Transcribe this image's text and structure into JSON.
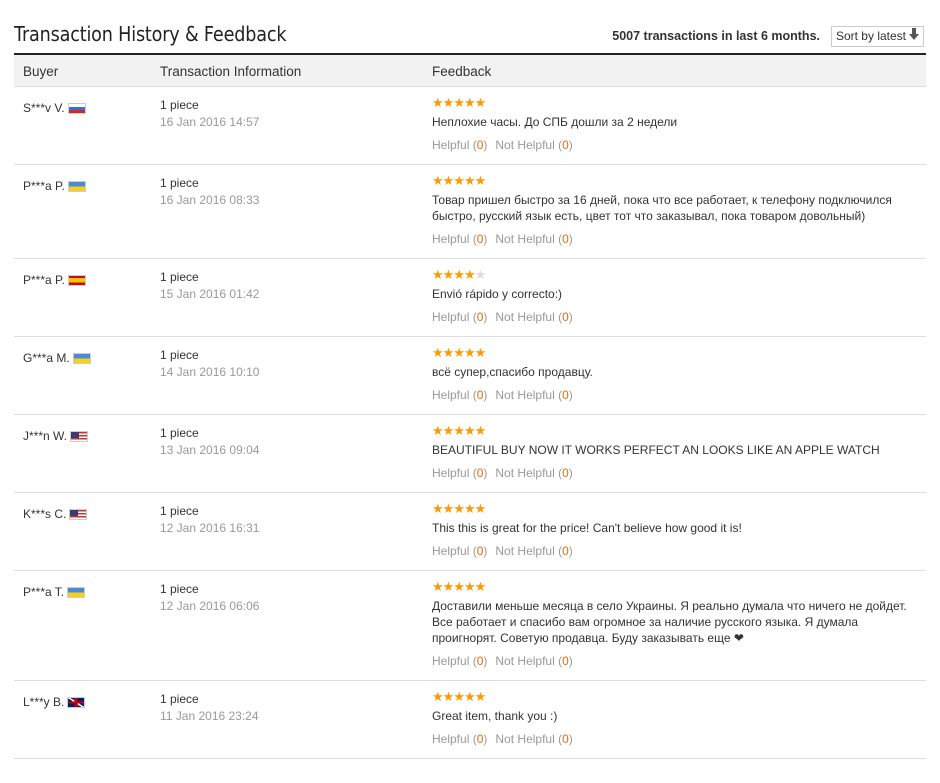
{
  "header": {
    "title": "Transaction History & Feedback",
    "count_text": "5007 transactions in last 6 months.",
    "sort_label": "Sort by latest"
  },
  "columns": [
    "Buyer",
    "Transaction Information",
    "Feedback"
  ],
  "helpful_label": "Helpful",
  "not_helpful_label": "Not Helpful",
  "colors": {
    "star": "#ff9900",
    "count": "#e66a00"
  },
  "rows": [
    {
      "buyer": "S***v V.",
      "flag": "ru",
      "qty": "1 piece",
      "date": "16 Jan 2016 14:57",
      "rating": 5,
      "text": "Неплохие часы. До СПБ дошли за 2 недели",
      "helpful": "0",
      "not_helpful": "0"
    },
    {
      "buyer": "P***a P.",
      "flag": "ua",
      "qty": "1 piece",
      "date": "16 Jan 2016 08:33",
      "rating": 5,
      "text": "Товар пришел быстро за 16 дней, пока что все работает, к телефону подключился быстро, русский язык есть, цвет тот что заказывал, пока товаром довольный)",
      "helpful": "0",
      "not_helpful": "0"
    },
    {
      "buyer": "P***a P.",
      "flag": "es",
      "qty": "1 piece",
      "date": "15 Jan 2016 01:42",
      "rating": 4,
      "text": "Envió rápido y correcto:)",
      "helpful": "0",
      "not_helpful": "0"
    },
    {
      "buyer": "G***a M.",
      "flag": "ua",
      "qty": "1 piece",
      "date": "14 Jan 2016 10:10",
      "rating": 5,
      "text": "всё супер,спасибо продавцу.",
      "helpful": "0",
      "not_helpful": "0"
    },
    {
      "buyer": "J***n W.",
      "flag": "us",
      "qty": "1 piece",
      "date": "13 Jan 2016 09:04",
      "rating": 5,
      "text": "BEAUTIFUL BUY NOW IT WORKS PERFECT AN LOOKS LIKE AN APPLE WATCH",
      "helpful": "0",
      "not_helpful": "0"
    },
    {
      "buyer": "K***s C.",
      "flag": "us",
      "qty": "1 piece",
      "date": "12 Jan 2016 16:31",
      "rating": 5,
      "text": "This this is great for the price! Can't believe how good it is!",
      "helpful": "0",
      "not_helpful": "0"
    },
    {
      "buyer": "P***a T.",
      "flag": "ua",
      "qty": "1 piece",
      "date": "12 Jan 2016 06:06",
      "rating": 5,
      "text": "Доставили меньше месяца в село Украины. Я реально думала что ничего не дойдет. Все работает и спасибо вам огромное за наличие русского языка. Я думала проигнорят. Советую продавца. Буду заказывать еще ❤",
      "helpful": "0",
      "not_helpful": "0"
    },
    {
      "buyer": "L***y B.",
      "flag": "gb",
      "qty": "1 piece",
      "date": "11 Jan 2016 23:24",
      "rating": 5,
      "text": "Great item, thank you :)",
      "helpful": "0",
      "not_helpful": "0"
    }
  ]
}
